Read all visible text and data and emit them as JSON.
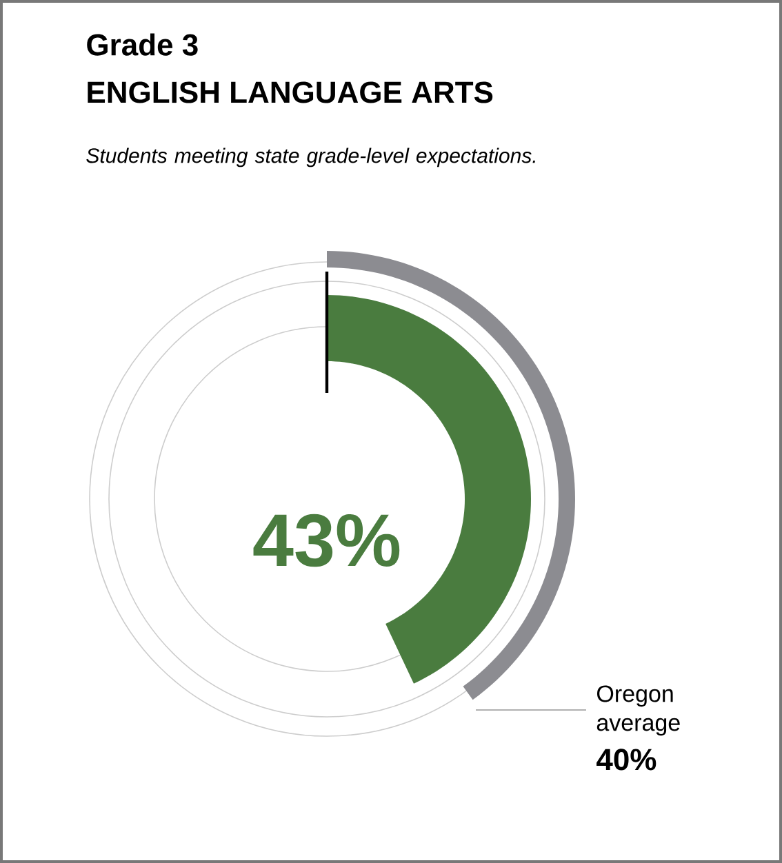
{
  "chart_data": {
    "type": "other",
    "title": "Grade 3",
    "subtitle": "ENGLISH LANGUAGE ARTS",
    "annotations": [
      "Students meeting state grade-level expectations."
    ],
    "categories": [
      null,
      "Oregon average"
    ],
    "values": [
      43,
      40
    ],
    "colors": [
      "#4a7c3f",
      "#8c8c91"
    ],
    "value_labels": [
      "43%",
      "40%"
    ]
  }
}
